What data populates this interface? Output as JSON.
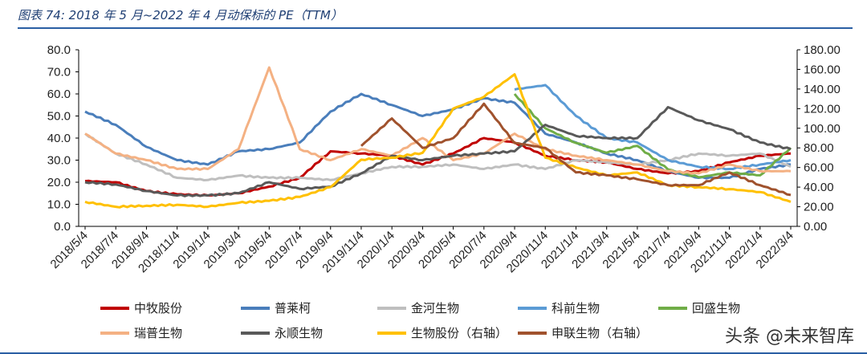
{
  "figure_title": "图表 74:  2018 年 5 月~2022 年 4 月动保标的 PE（TTM）",
  "watermark": "头条 @未来智库",
  "chart_data": {
    "type": "line",
    "x": [
      "2018/5/4",
      "2018/7/4",
      "2018/9/4",
      "2018/11/4",
      "2019/1/4",
      "2019/3/4",
      "2019/5/4",
      "2019/7/4",
      "2019/9/4",
      "2019/11/4",
      "2020/1/4",
      "2020/3/4",
      "2020/5/4",
      "2020/7/4",
      "2020/9/4",
      "2020/11/4",
      "2021/1/4",
      "2021/3/4",
      "2021/5/4",
      "2021/7/4",
      "2021/9/4",
      "2021/11/4",
      "2022/1/4",
      "2022/3/4"
    ],
    "y_left": {
      "range": [
        0,
        80
      ],
      "ticks": [
        "0.0",
        "10.0",
        "20.0",
        "30.0",
        "40.0",
        "50.0",
        "60.0",
        "70.0",
        "80.0"
      ]
    },
    "y_right": {
      "range": [
        0,
        180
      ],
      "ticks": [
        "0.00",
        "20.00",
        "40.00",
        "60.00",
        "80.00",
        "100.00",
        "120.00",
        "140.00",
        "160.00",
        "180.00"
      ]
    },
    "legend_position": "bottom",
    "series": [
      {
        "name": "中牧股份",
        "color": "#c00000",
        "axis": "left",
        "values": [
          20.5,
          20,
          16,
          14.5,
          14,
          15,
          18,
          22,
          34,
          33,
          32,
          28,
          33,
          40,
          38,
          32,
          30,
          29,
          26,
          24,
          25,
          29,
          32,
          33
        ]
      },
      {
        "name": "普莱柯",
        "color": "#4a7ebb",
        "axis": "left",
        "values": [
          52,
          46,
          36,
          30,
          28,
          34,
          35,
          38,
          52,
          60,
          55,
          50,
          53,
          58,
          56,
          42,
          38,
          33,
          30,
          25,
          22,
          22,
          26,
          28
        ]
      },
      {
        "name": "金河生物",
        "color": "#bfbfbf",
        "axis": "left",
        "values": [
          42,
          33,
          28,
          22,
          21,
          23,
          22,
          22,
          21,
          24,
          27,
          27,
          28,
          26,
          28,
          26,
          30,
          29,
          28,
          30,
          33,
          32,
          33,
          27
        ]
      },
      {
        "name": "科前生物",
        "color": "#5b9bd5",
        "axis": "left",
        "values": [
          null,
          null,
          null,
          null,
          null,
          null,
          null,
          null,
          null,
          null,
          null,
          null,
          null,
          null,
          62,
          64,
          50,
          40,
          38,
          30,
          27,
          26,
          28,
          30
        ]
      },
      {
        "name": "回盛生物",
        "color": "#70ad47",
        "axis": "right",
        "values": [
          null,
          null,
          null,
          null,
          null,
          null,
          null,
          null,
          null,
          null,
          null,
          null,
          null,
          null,
          135,
          100,
          85,
          75,
          82,
          58,
          50,
          55,
          52,
          80
        ]
      },
      {
        "name": "瑞普生物",
        "color": "#f4b183",
        "axis": "left",
        "values": [
          42,
          33,
          30,
          26,
          26,
          35,
          72,
          35,
          30,
          35,
          32,
          40,
          30,
          33,
          42,
          35,
          32,
          30,
          28,
          25,
          24,
          28,
          25,
          25
        ]
      },
      {
        "name": "永顺生物",
        "color": "#595959",
        "axis": "left",
        "values": [
          20,
          19,
          16,
          14,
          14,
          15,
          20,
          17,
          18,
          24,
          32,
          30,
          32,
          33,
          34,
          46,
          41,
          40,
          40,
          54,
          48,
          44,
          38,
          35
        ]
      },
      {
        "name": "生物股份（右轴）",
        "color": "#ffc000",
        "axis": "right",
        "values": [
          25,
          20,
          21,
          22,
          20,
          24,
          26,
          30,
          40,
          68,
          70,
          75,
          120,
          132,
          155,
          70,
          60,
          52,
          55,
          42,
          40,
          38,
          35,
          25
        ]
      },
      {
        "name": "申联生物（右轴）",
        "color": "#a0522d",
        "axis": "right",
        "values": [
          null,
          null,
          null,
          null,
          null,
          null,
          null,
          null,
          null,
          82,
          110,
          80,
          90,
          125,
          85,
          80,
          55,
          52,
          48,
          42,
          42,
          55,
          42,
          32
        ]
      }
    ]
  }
}
